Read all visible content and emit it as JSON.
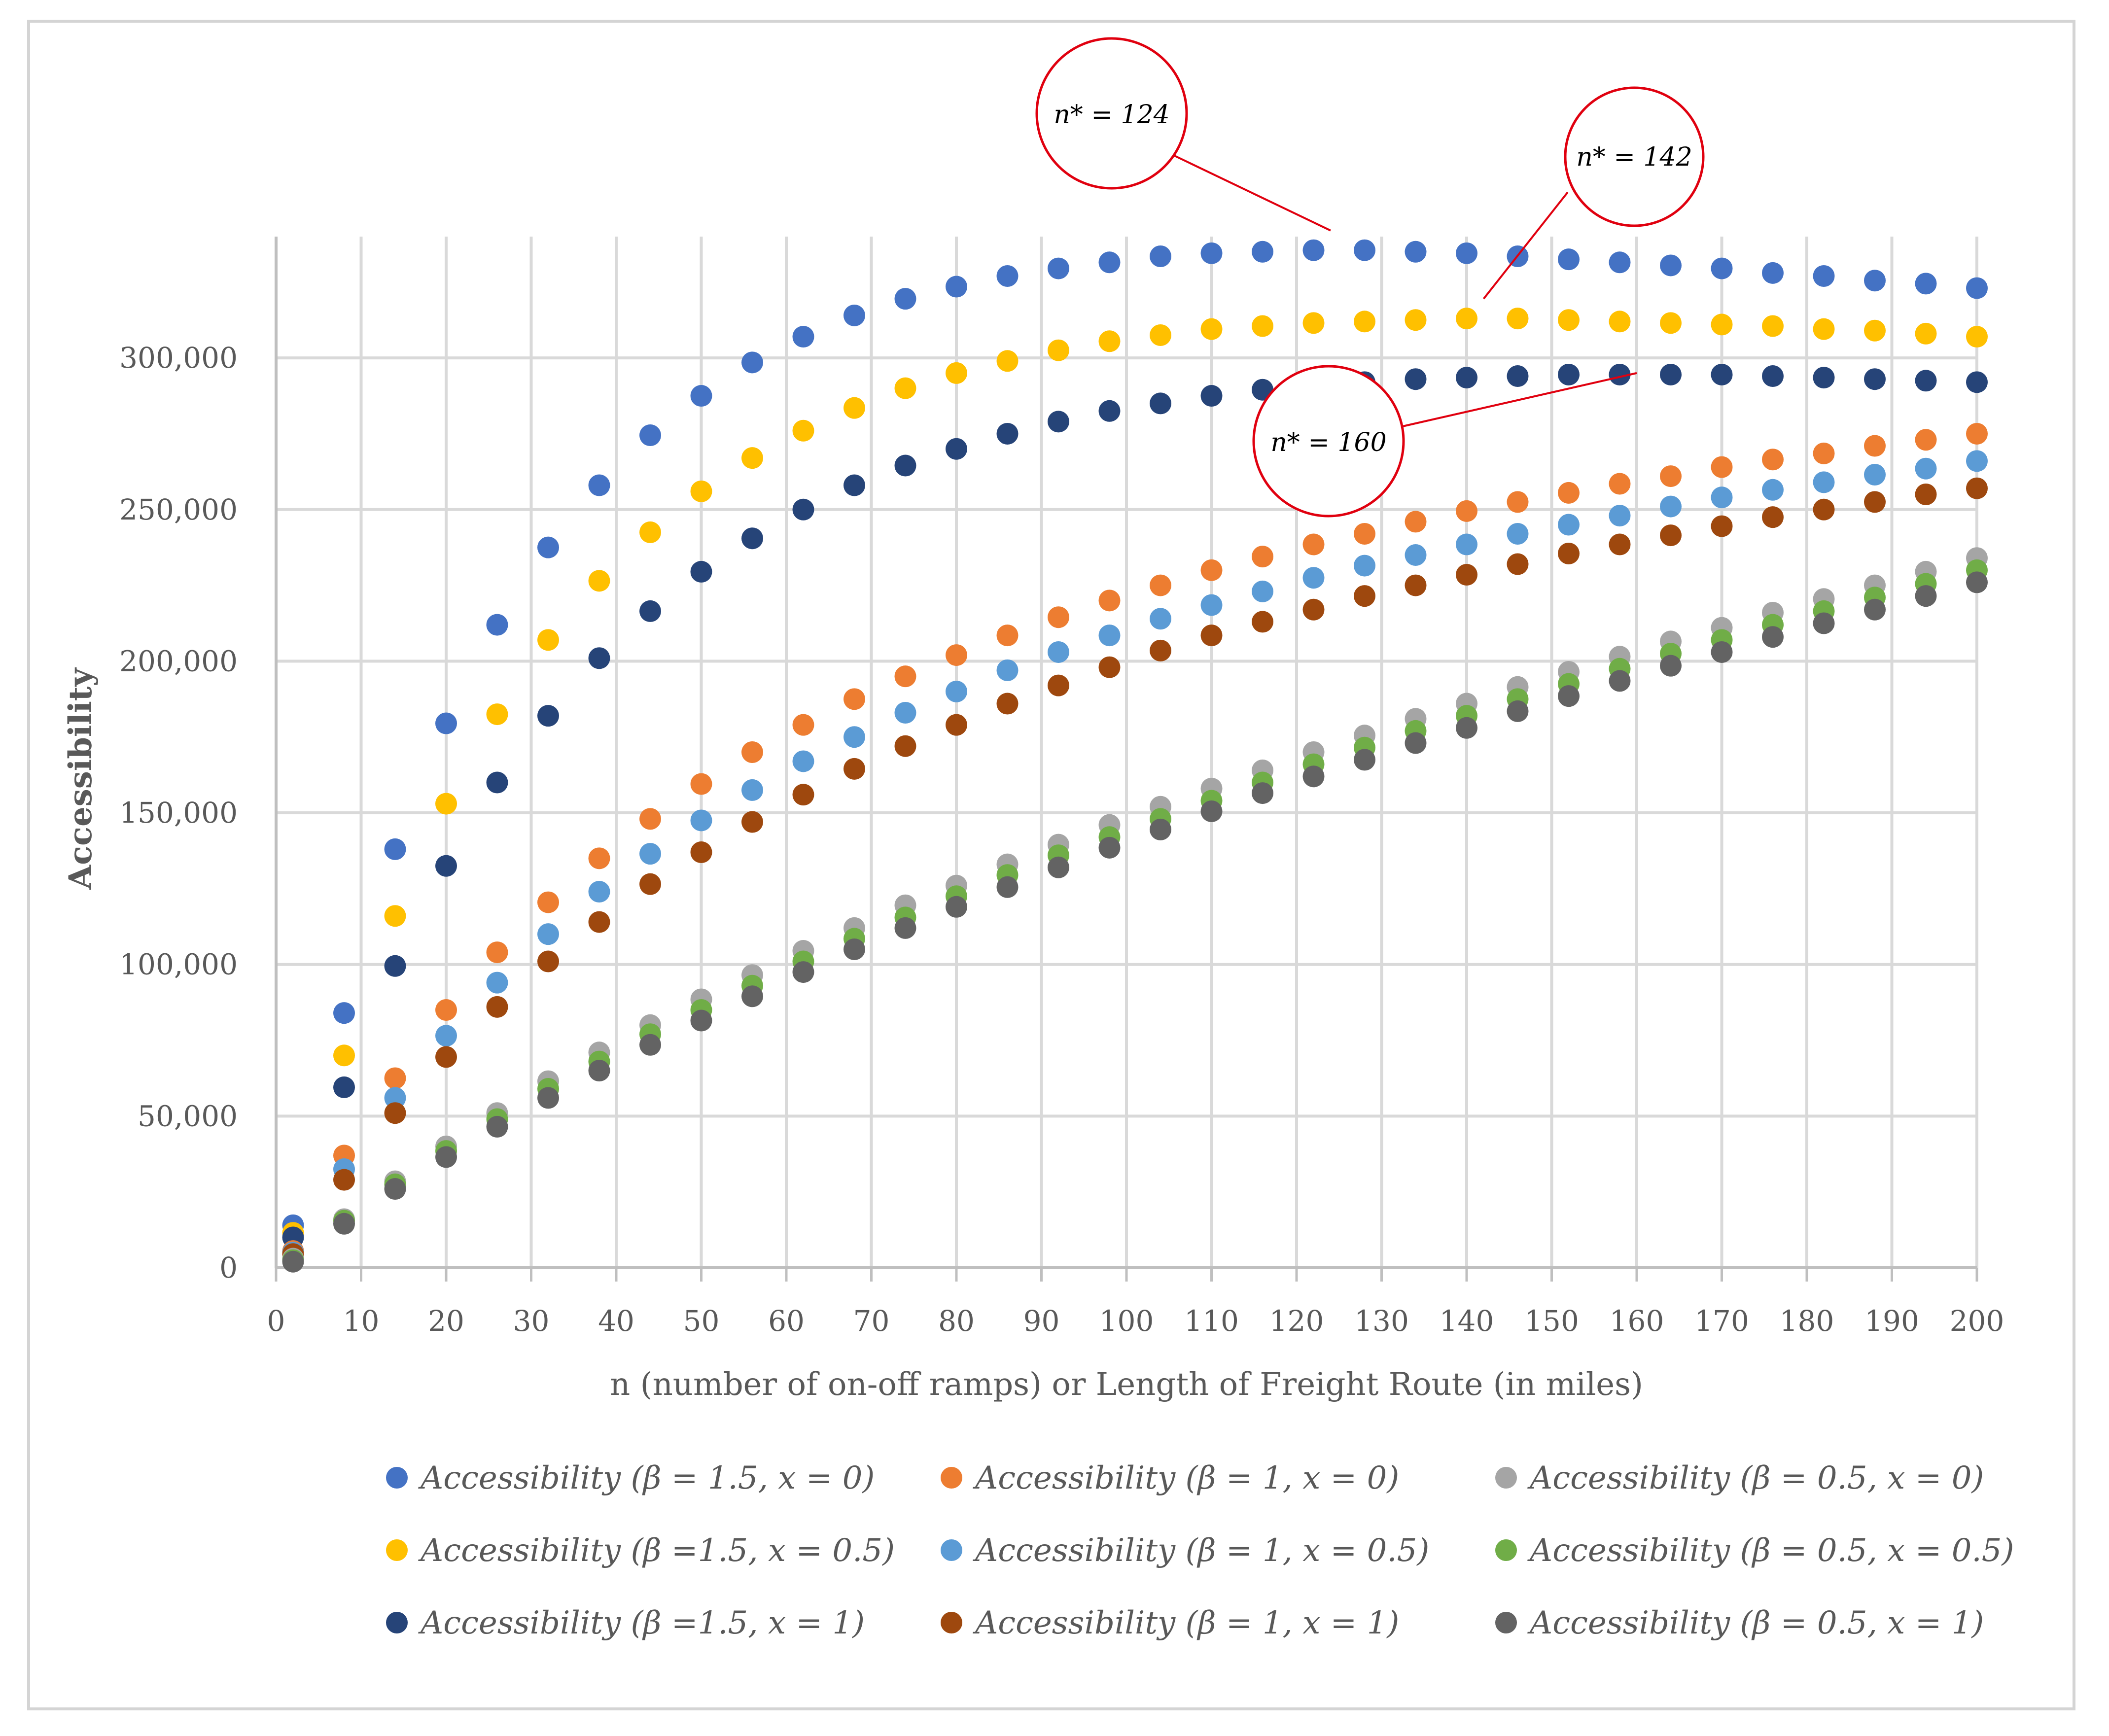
{
  "chart_data": {
    "type": "scatter",
    "title": "",
    "xlabel": "n (number of on-off ramps) or Length of Freight Route (in miles)",
    "ylabel": "Accessibility",
    "xlim": [
      0,
      200
    ],
    "ylim": [
      0,
      340000
    ],
    "x_ticks": [
      0,
      10,
      20,
      30,
      40,
      50,
      60,
      70,
      80,
      90,
      100,
      110,
      120,
      130,
      140,
      150,
      160,
      170,
      180,
      190,
      200
    ],
    "x_tick_labels": [
      "0",
      "10",
      "20",
      "30",
      "40",
      "50",
      "60",
      "70",
      "80",
      "90",
      "100",
      "110",
      "120",
      "130",
      "140",
      "150",
      "160",
      "170",
      "180",
      "190",
      "200"
    ],
    "y_ticks": [
      0,
      50000,
      100000,
      150000,
      200000,
      250000,
      300000
    ],
    "y_tick_labels": [
      "0",
      "50,000",
      "100,000",
      "150,000",
      "200,000",
      "250,000",
      "300,000"
    ],
    "grid": true,
    "legend_position": "bottom",
    "x": [
      2,
      8,
      14,
      20,
      26,
      32,
      38,
      44,
      50,
      56,
      62,
      68,
      74,
      80,
      86,
      92,
      98,
      104,
      110,
      116,
      122,
      128,
      134,
      140,
      146,
      152,
      158,
      164,
      170,
      176,
      182,
      188,
      194,
      200
    ],
    "series": [
      {
        "name": "Accessibility (β = 1.5, x = 0)",
        "color": "#4472C4",
        "values": [
          14000,
          84000,
          138000,
          179500,
          212000,
          237500,
          258000,
          274500,
          287500,
          298500,
          307000,
          314000,
          319500,
          323500,
          327000,
          329500,
          331500,
          333500,
          334500,
          335000,
          335500,
          335500,
          335000,
          334500,
          333500,
          332500,
          331500,
          330500,
          329500,
          328000,
          327000,
          325500,
          324500,
          323000
        ]
      },
      {
        "name": "Accessibility (β =1.5, x = 0.5)",
        "color": "#FFC000",
        "values": [
          11500,
          70000,
          116000,
          153000,
          182500,
          207000,
          226500,
          242500,
          256000,
          267000,
          276000,
          283500,
          290000,
          295000,
          299000,
          302500,
          305500,
          307500,
          309500,
          310500,
          311500,
          312000,
          312500,
          313000,
          313000,
          312500,
          312000,
          311500,
          311000,
          310500,
          309500,
          309000,
          308000,
          307000
        ]
      },
      {
        "name": "Accessibility (β =1.5, x = 1)",
        "color": "#264478",
        "values": [
          10000,
          59500,
          99500,
          132500,
          160000,
          182000,
          201000,
          216500,
          229500,
          240500,
          250000,
          258000,
          264500,
          270000,
          275000,
          279000,
          282500,
          285000,
          287500,
          289500,
          291000,
          292000,
          293000,
          293500,
          294000,
          294500,
          294500,
          294500,
          294500,
          294000,
          293500,
          293000,
          292500,
          292000
        ]
      },
      {
        "name": "Accessibility (β = 1, x = 0)",
        "color": "#ED7D31",
        "values": [
          5500,
          37000,
          62500,
          85000,
          104000,
          120500,
          135000,
          148000,
          159500,
          170000,
          179000,
          187500,
          195000,
          202000,
          208500,
          214500,
          220000,
          225000,
          230000,
          234500,
          238500,
          242000,
          246000,
          249500,
          252500,
          255500,
          258500,
          261000,
          264000,
          266500,
          268500,
          271000,
          273000,
          275000
        ]
      },
      {
        "name": "Accessibility (β = 1, x = 0.5)",
        "color": "#5B9BD5",
        "values": [
          5000,
          32500,
          56000,
          76500,
          94000,
          110000,
          124000,
          136500,
          147500,
          157500,
          167000,
          175000,
          183000,
          190000,
          197000,
          203000,
          208500,
          214000,
          218500,
          223000,
          227500,
          231500,
          235000,
          238500,
          242000,
          245000,
          248000,
          251000,
          254000,
          256500,
          259000,
          261500,
          263500,
          266000
        ]
      },
      {
        "name": "Accessibility (β = 1, x = 1)",
        "color": "#9E480E",
        "values": [
          4500,
          29000,
          51000,
          69500,
          86000,
          101000,
          114000,
          126500,
          137000,
          147000,
          156000,
          164500,
          172000,
          179000,
          186000,
          192000,
          198000,
          203500,
          208500,
          213000,
          217000,
          221500,
          225000,
          228500,
          232000,
          235500,
          238500,
          241500,
          244500,
          247500,
          250000,
          252500,
          255000,
          257000
        ]
      },
      {
        "name": "Accessibility (β = 0.5, x = 0)",
        "color": "#A5A5A5",
        "values": [
          3000,
          16000,
          28500,
          40000,
          51000,
          61500,
          71000,
          80000,
          88500,
          96500,
          104500,
          112000,
          119500,
          126000,
          133000,
          139500,
          146000,
          152000,
          158000,
          164000,
          170000,
          175500,
          181000,
          186000,
          191500,
          196500,
          201500,
          206500,
          211000,
          216000,
          220500,
          225000,
          229500,
          234000
        ]
      },
      {
        "name": "Accessibility (β = 0.5, x = 0.5)",
        "color": "#70AD47",
        "values": [
          2500,
          15500,
          27500,
          38500,
          49000,
          59000,
          68000,
          77000,
          85000,
          93000,
          101000,
          108500,
          115500,
          122500,
          129500,
          136000,
          142000,
          148000,
          154000,
          160000,
          166000,
          171500,
          177000,
          182000,
          187500,
          192500,
          197500,
          202500,
          207000,
          212000,
          216500,
          221000,
          225500,
          230000
        ]
      },
      {
        "name": "Accessibility (β = 0.5, x = 1)",
        "color": "#636363",
        "values": [
          2000,
          14500,
          26000,
          36500,
          46500,
          56000,
          65000,
          73500,
          81500,
          89500,
          97500,
          105000,
          112000,
          119000,
          125500,
          132000,
          138500,
          144500,
          150500,
          156500,
          162000,
          167500,
          173000,
          178000,
          183500,
          188500,
          193500,
          198500,
          203000,
          208000,
          212500,
          217000,
          221500,
          226000
        ]
      }
    ],
    "annotations": [
      {
        "text": "n* = 124",
        "target_x": 124,
        "target_y": 342000
      },
      {
        "text": "n* = 142",
        "target_x": 142,
        "target_y": 319500
      },
      {
        "text": "n* = 160",
        "target_x": 160,
        "target_y": 295000
      }
    ]
  }
}
